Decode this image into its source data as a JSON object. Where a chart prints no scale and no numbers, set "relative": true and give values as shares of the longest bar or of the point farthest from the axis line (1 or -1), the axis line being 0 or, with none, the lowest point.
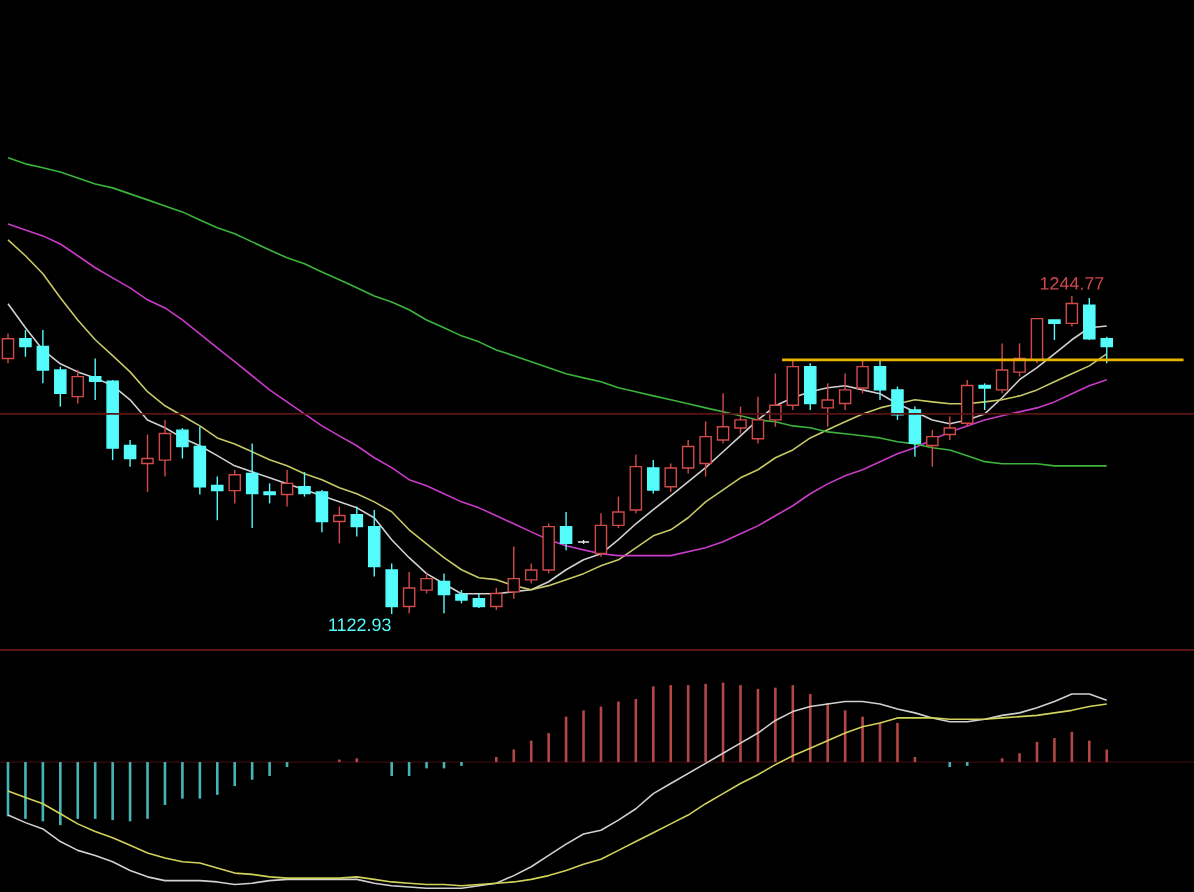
{
  "chart_data": [
    {
      "type": "candlestick",
      "categories": [
        null,
        null,
        null,
        null,
        null,
        null,
        null,
        null,
        null,
        null,
        null,
        null,
        null,
        null,
        null,
        null,
        null,
        null,
        null,
        null,
        null,
        null,
        null,
        null,
        null,
        null,
        null,
        null,
        null,
        null,
        null,
        null,
        null,
        null,
        null,
        null,
        null,
        null,
        null,
        null,
        null,
        null,
        null,
        null,
        null,
        null,
        null,
        null,
        null,
        null,
        null,
        null,
        null,
        null,
        null,
        null,
        null,
        null,
        null,
        null,
        null,
        null,
        null,
        null
      ],
      "ohlc": [
        [
          1220.8,
          1230.4,
          1219.0,
          1228.4
        ],
        [
          1228.4,
          1231.7,
          1221.5,
          1225.4
        ],
        [
          1225.4,
          1231.7,
          1211.3,
          1216.4
        ],
        [
          1216.4,
          1217.7,
          1202.4,
          1207.5
        ],
        [
          1206.2,
          1216.4,
          1203.6,
          1213.9
        ],
        [
          1213.9,
          1220.8,
          1204.9,
          1212.1
        ],
        [
          1212.1,
          1212.6,
          1181.9,
          1186.5
        ],
        [
          1187.5,
          1189.6,
          1179.4,
          1182.5
        ],
        [
          1180.6,
          1191.7,
          1169.7,
          1182.5
        ],
        [
          1181.9,
          1197.3,
          1175.6,
          1192.1
        ],
        [
          1193.4,
          1194.2,
          1182.5,
          1187.1
        ],
        [
          1187.1,
          1194.7,
          1168.7,
          1171.7
        ],
        [
          1172.2,
          1175.6,
          1158.9,
          1170.2
        ],
        [
          1170.2,
          1178.1,
          1165.3,
          1176.3
        ],
        [
          1176.8,
          1188.3,
          1155.9,
          1169.1
        ],
        [
          1169.7,
          1173.0,
          1165.3,
          1168.7
        ],
        [
          1168.7,
          1178.1,
          1164.1,
          1173.0
        ],
        [
          1171.7,
          1177.3,
          1167.9,
          1169.1
        ],
        [
          1169.7,
          1170.4,
          1154.3,
          1158.4
        ],
        [
          1158.4,
          1164.1,
          1150.0,
          1160.7
        ],
        [
          1161.0,
          1164.1,
          1152.6,
          1156.4
        ],
        [
          1156.4,
          1162.8,
          1137.3,
          1141.1
        ],
        [
          1139.8,
          1142.3,
          1122.93,
          1125.8
        ],
        [
          1125.8,
          1139.0,
          1123.2,
          1132.9
        ],
        [
          1132.1,
          1138.5,
          1130.8,
          1136.5
        ],
        [
          1135.4,
          1138.5,
          1123.2,
          1130.4
        ],
        [
          1130.4,
          1132.1,
          1127.0,
          1128.3
        ],
        [
          1128.8,
          1130.8,
          1125.2,
          1125.8
        ],
        [
          1125.8,
          1132.9,
          1124.5,
          1130.8
        ],
        [
          1131.4,
          1148.8,
          1128.8,
          1136.5
        ],
        [
          1136.0,
          1142.3,
          1134.7,
          1139.8
        ],
        [
          1139.8,
          1157.6,
          1138.5,
          1156.4
        ],
        [
          1156.4,
          1162.0,
          1147.4,
          1150.0
        ],
        [
          1150.5,
          1151.3,
          1149.8,
          1150.5
        ],
        [
          1146.1,
          1161.5,
          1144.9,
          1156.9
        ],
        [
          1156.9,
          1167.9,
          1155.9,
          1162.0
        ],
        [
          1162.8,
          1184.0,
          1161.5,
          1179.4
        ],
        [
          1178.9,
          1181.9,
          1169.1,
          1170.4
        ],
        [
          1171.7,
          1180.6,
          1169.7,
          1178.9
        ],
        [
          1178.9,
          1189.6,
          1176.8,
          1187.1
        ],
        [
          1180.6,
          1196.7,
          1175.6,
          1190.9
        ],
        [
          1189.6,
          1207.5,
          1188.3,
          1194.7
        ],
        [
          1194.2,
          1202.4,
          1192.1,
          1197.3
        ],
        [
          1190.1,
          1206.2,
          1188.3,
          1197.3
        ],
        [
          1197.3,
          1215.1,
          1194.7,
          1202.9
        ],
        [
          1202.9,
          1220.3,
          1201.1,
          1217.7
        ],
        [
          1217.7,
          1219.0,
          1201.1,
          1203.6
        ],
        [
          1201.9,
          1211.3,
          1194.7,
          1204.9
        ],
        [
          1203.6,
          1215.1,
          1201.1,
          1208.8
        ],
        [
          1209.5,
          1220.3,
          1207.5,
          1217.7
        ],
        [
          1217.7,
          1220.3,
          1204.9,
          1208.8
        ],
        [
          1208.8,
          1210.1,
          1197.3,
          1199.3
        ],
        [
          1201.1,
          1202.4,
          1183.2,
          1188.3
        ],
        [
          1187.5,
          1193.4,
          1179.4,
          1190.9
        ],
        [
          1191.7,
          1198.6,
          1189.6,
          1194.2
        ],
        [
          1196.0,
          1212.6,
          1194.7,
          1210.5
        ],
        [
          1210.5,
          1211.3,
          1201.1,
          1209.5
        ],
        [
          1208.8,
          1226.6,
          1207.5,
          1216.4
        ],
        [
          1215.6,
          1226.6,
          1213.9,
          1220.8
        ],
        [
          1220.3,
          1236.1,
          1219.0,
          1236.1
        ],
        [
          1235.6,
          1235.6,
          1227.9,
          1234.3
        ],
        [
          1234.3,
          1244.77,
          1233.1,
          1241.9
        ],
        [
          1241.2,
          1244.0,
          1227.9,
          1228.4
        ],
        [
          1228.4,
          1229.2,
          1219.0,
          1225.4
        ]
      ],
      "colors": [
        "#d24b4b",
        "#54fcfc",
        "#54fcfc",
        "#54fcfc",
        "#d24b4b",
        "#54fcfc",
        "#54fcfc",
        "#54fcfc",
        "#d24b4b",
        "#d24b4b",
        "#54fcfc",
        "#54fcfc",
        "#54fcfc",
        "#d24b4b",
        "#54fcfc",
        "#54fcfc",
        "#d24b4b",
        "#54fcfc",
        "#54fcfc",
        "#d24b4b",
        "#54fcfc",
        "#54fcfc",
        "#54fcfc",
        "#d24b4b",
        "#d24b4b",
        "#54fcfc",
        "#54fcfc",
        "#54fcfc",
        "#d24b4b",
        "#d24b4b",
        "#d24b4b",
        "#d24b4b",
        "#54fcfc",
        "#e6e6e6",
        "#d24b4b",
        "#d24b4b",
        "#d24b4b",
        "#54fcfc",
        "#d24b4b",
        "#d24b4b",
        "#d24b4b",
        "#d24b4b",
        "#d24b4b",
        "#d24b4b",
        "#d24b4b",
        "#d24b4b",
        "#54fcfc",
        "#d24b4b",
        "#d24b4b",
        "#d24b4b",
        "#54fcfc",
        "#54fcfc",
        "#54fcfc",
        "#d24b4b",
        "#d24b4b",
        "#d24b4b",
        "#54fcfc",
        "#d24b4b",
        "#d24b4b",
        "#d24b4b",
        "#54fcfc",
        "#d24b4b",
        "#54fcfc",
        "#54fcfc"
      ],
      "series": [
        {
          "type": "line",
          "color": "#d0d0d0",
          "values": [
            1241.8,
            1232.6,
            1224.1,
            1218.8,
            1215.7,
            1213.4,
            1210.4,
            1205.0,
            1197.3,
            1194.3,
            1190.4,
            1187.4,
            1183.6,
            1179.7,
            1177.4,
            1175.1,
            1172.8,
            1170.5,
            1168.2,
            1165.9,
            1163.6,
            1159.8,
            1151.4,
            1144.5,
            1138.4,
            1134.5,
            1130.7,
            1130.7,
            1130.7,
            1131.5,
            1132.2,
            1135.3,
            1139.9,
            1143.7,
            1146.0,
            1151.4,
            1157.5,
            1162.9,
            1168.2,
            1173.6,
            1179.0,
            1185.1,
            1191.2,
            1197.3,
            1202.7,
            1205.8,
            1208.1,
            1209.6,
            1210.4,
            1208.8,
            1207.3,
            1203.5,
            1200.4,
            1197.3,
            1195.8,
            1197.3,
            1199.6,
            1205.8,
            1212.7,
            1217.3,
            1222.6,
            1228.0,
            1232.6,
            1233.3
          ]
        },
        {
          "type": "line",
          "color": "#c8c864",
          "values": [
            1266.3,
            1260.2,
            1253.3,
            1244.1,
            1235.6,
            1228.0,
            1221.9,
            1215.7,
            1208.1,
            1202.7,
            1198.9,
            1195.0,
            1190.4,
            1188.1,
            1185.1,
            1182.0,
            1179.7,
            1176.7,
            1174.4,
            1171.3,
            1169.0,
            1165.9,
            1162.1,
            1155.2,
            1149.8,
            1144.5,
            1139.9,
            1136.8,
            1136.1,
            1133.8,
            1132.2,
            1133.8,
            1136.1,
            1138.4,
            1141.4,
            1143.7,
            1148.3,
            1152.9,
            1155.2,
            1159.8,
            1165.9,
            1170.5,
            1175.1,
            1178.2,
            1182.8,
            1185.8,
            1190.4,
            1193.5,
            1196.6,
            1199.6,
            1201.9,
            1203.5,
            1205.0,
            1204.2,
            1203.5,
            1203.5,
            1204.2,
            1205.0,
            1206.5,
            1208.8,
            1211.9,
            1215.0,
            1218.0,
            1222.6
          ]
        },
        {
          "type": "line",
          "color": "#c83cc8",
          "values": [
            1272.4,
            1270.1,
            1267.8,
            1264.7,
            1260.2,
            1255.6,
            1251.7,
            1247.9,
            1243.3,
            1240.2,
            1235.6,
            1230.3,
            1224.9,
            1219.6,
            1214.2,
            1208.8,
            1204.2,
            1199.6,
            1195.0,
            1191.2,
            1187.4,
            1182.8,
            1179.0,
            1174.4,
            1172.1,
            1169.0,
            1165.9,
            1163.6,
            1160.6,
            1157.5,
            1154.4,
            1151.4,
            1149.1,
            1147.5,
            1146.0,
            1145.3,
            1145.3,
            1145.3,
            1145.3,
            1146.8,
            1148.3,
            1150.6,
            1153.7,
            1156.7,
            1160.6,
            1164.4,
            1169.0,
            1172.8,
            1175.9,
            1178.2,
            1181.3,
            1184.3,
            1186.6,
            1189.7,
            1192.7,
            1195.0,
            1197.3,
            1198.9,
            1200.4,
            1201.9,
            1204.2,
            1207.3,
            1210.4,
            1212.7
          ]
        },
        {
          "type": "line",
          "color": "#3cb43c",
          "values": [
            1297.7,
            1295.4,
            1293.9,
            1292.3,
            1290.0,
            1287.7,
            1286.2,
            1283.9,
            1281.6,
            1279.3,
            1277.0,
            1273.9,
            1270.9,
            1268.6,
            1265.5,
            1262.4,
            1259.4,
            1257.1,
            1254.0,
            1251.0,
            1247.9,
            1244.8,
            1242.5,
            1239.5,
            1235.6,
            1232.6,
            1229.5,
            1227.2,
            1224.1,
            1221.9,
            1219.6,
            1217.3,
            1215.0,
            1213.4,
            1211.9,
            1209.6,
            1208.1,
            1206.5,
            1205.0,
            1203.5,
            1201.9,
            1200.4,
            1198.9,
            1197.3,
            1196.6,
            1195.0,
            1194.3,
            1192.7,
            1192.0,
            1191.2,
            1190.4,
            1188.9,
            1188.1,
            1186.6,
            1185.8,
            1183.6,
            1181.3,
            1180.5,
            1180.5,
            1180.5,
            1179.7,
            1179.7,
            1179.7,
            1179.7
          ]
        }
      ],
      "ref_lines": [
        {
          "axis": "y",
          "value": 1220.3,
          "color": "#e8b400"
        },
        {
          "axis": "y",
          "value": 1199.6,
          "color": "#5a1414"
        }
      ],
      "annotations": [
        "1244.77",
        "1122.93"
      ]
    },
    {
      "type": "line",
      "relative": true,
      "categories": [
        null,
        null,
        null,
        null,
        null,
        null,
        null,
        null,
        null,
        null,
        null,
        null,
        null,
        null,
        null,
        null,
        null,
        null,
        null,
        null,
        null,
        null,
        null,
        null,
        null,
        null,
        null,
        null,
        null,
        null,
        null,
        null,
        null,
        null,
        null,
        null,
        null,
        null,
        null,
        null,
        null,
        null,
        null,
        null,
        null,
        null,
        null,
        null,
        null,
        null,
        null,
        null,
        null,
        null,
        null,
        null,
        null,
        null,
        null,
        null,
        null,
        null,
        null,
        null
      ],
      "series": [
        {
          "type": "bar",
          "values": [
            -0.43,
            -0.45,
            -0.47,
            -0.5,
            -0.45,
            -0.45,
            -0.46,
            -0.47,
            -0.45,
            -0.34,
            -0.29,
            -0.29,
            -0.26,
            -0.19,
            -0.14,
            -0.11,
            -0.04,
            null,
            0,
            0.02,
            0.03,
            null,
            -0.11,
            -0.11,
            -0.05,
            -0.05,
            -0.03,
            0,
            0.04,
            0.1,
            0.17,
            0.23,
            0.36,
            0.41,
            0.44,
            0.48,
            0.5,
            0.6,
            0.61,
            0.61,
            0.62,
            0.63,
            0.61,
            0.58,
            0.59,
            0.61,
            0.54,
            0.47,
            0.41,
            0.36,
            0.31,
            0.31,
            0.04,
            0,
            -0.04,
            -0.03,
            0,
            0.03,
            0.07,
            0.16,
            0.19,
            0.24,
            0.17,
            0.1
          ],
          "colors": [
            "#46b4b4",
            "#46b4b4",
            "#46b4b4",
            "#46b4b4",
            "#46b4b4",
            "#46b4b4",
            "#46b4b4",
            "#46b4b4",
            "#46b4b4",
            "#46b4b4",
            "#46b4b4",
            "#46b4b4",
            "#46b4b4",
            "#46b4b4",
            "#46b4b4",
            "#46b4b4",
            "#46b4b4",
            "#46b4b4",
            "#46b4b4",
            "#b44646",
            "#b44646",
            "#46b4b4",
            "#46b4b4",
            "#46b4b4",
            "#46b4b4",
            "#46b4b4",
            "#46b4b4",
            "#46b4b4",
            "#b44646",
            "#b44646",
            "#b44646",
            "#b44646",
            "#b44646",
            "#b44646",
            "#b44646",
            "#b44646",
            "#b44646",
            "#b44646",
            "#b44646",
            "#b44646",
            "#b44646",
            "#b44646",
            "#b44646",
            "#b44646",
            "#b44646",
            "#b44646",
            "#b44646",
            "#b44646",
            "#b44646",
            "#b44646",
            "#b44646",
            "#b44646",
            "#b44646",
            "#b44646",
            "#46b4b4",
            "#46b4b4",
            "#46b4b4",
            "#b44646",
            "#b44646",
            "#b44646",
            "#b44646",
            "#b44646",
            "#b44646",
            "#b44646"
          ]
        },
        {
          "type": "line",
          "color": "#d0d0d0",
          "values": [
            -0.42,
            -0.48,
            -0.53,
            -0.63,
            -0.7,
            -0.74,
            -0.79,
            -0.86,
            -0.91,
            -0.94,
            -0.94,
            -0.94,
            -0.95,
            -0.97,
            -0.96,
            -0.94,
            -0.93,
            -0.93,
            -0.93,
            -0.93,
            -0.93,
            -0.96,
            -0.98,
            -0.99,
            -1,
            -1,
            -1,
            -0.98,
            -0.96,
            -0.9,
            -0.83,
            -0.74,
            -0.65,
            -0.57,
            -0.54,
            -0.46,
            -0.37,
            -0.25,
            -0.17,
            -0.09,
            -0.01,
            0.07,
            0.15,
            0.23,
            0.33,
            0.4,
            0.44,
            0.46,
            0.48,
            0.48,
            0.46,
            0.42,
            0.39,
            0.35,
            0.32,
            0.32,
            0.34,
            0.37,
            0.39,
            0.43,
            0.48,
            0.54,
            0.54,
            0.49
          ]
        },
        {
          "type": "line",
          "color": "#d2d25a",
          "values": [
            -0.23,
            -0.28,
            -0.33,
            -0.41,
            -0.49,
            -0.55,
            -0.6,
            -0.66,
            -0.72,
            -0.76,
            -0.79,
            -0.8,
            -0.84,
            -0.88,
            -0.89,
            -0.91,
            -0.92,
            -0.92,
            -0.92,
            -0.92,
            -0.91,
            -0.93,
            -0.95,
            -0.96,
            -0.97,
            -0.97,
            -0.98,
            -0.97,
            -0.96,
            -0.95,
            -0.93,
            -0.9,
            -0.86,
            -0.81,
            -0.77,
            -0.7,
            -0.63,
            -0.56,
            -0.49,
            -0.42,
            -0.33,
            -0.25,
            -0.17,
            -0.1,
            -0.02,
            0.05,
            0.11,
            0.17,
            0.23,
            0.28,
            0.31,
            0.35,
            0.35,
            0.35,
            0.34,
            0.34,
            0.34,
            0.35,
            0.36,
            0.37,
            0.39,
            0.41,
            0.44,
            0.46
          ]
        }
      ]
    }
  ]
}
